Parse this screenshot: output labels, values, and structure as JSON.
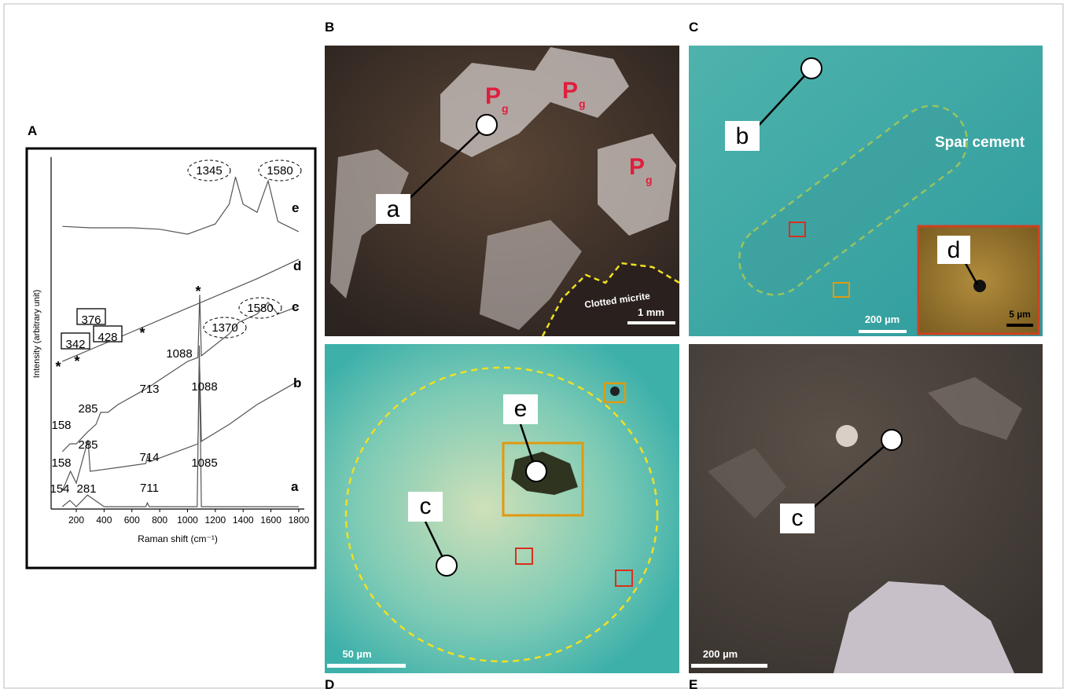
{
  "chart_data": {
    "type": "line",
    "xlabel": "Raman shift (cm⁻¹)",
    "ylabel": "Intensity (arbitrary unit)",
    "xlim": [
      19,
      1840
    ],
    "xticks": [
      200,
      400,
      600,
      800,
      1000,
      1200,
      1400,
      1600,
      1800
    ],
    "ylim": [
      0,
      100
    ],
    "series": [
      {
        "name": "a",
        "color": "#555555",
        "x": [
          100,
          154,
          200,
          281,
          400,
          700,
          711,
          725,
          1070,
          1085,
          1100,
          1800
        ],
        "values": [
          1.1,
          2.9,
          1.1,
          4.4,
          1.1,
          1.1,
          2.2,
          1.1,
          1.1,
          46.7,
          1.1,
          1.1
        ]
      },
      {
        "name": "b",
        "color": "#555555",
        "x": [
          100,
          158,
          200,
          285,
          300,
          500,
          700,
          714,
          725,
          1000,
          1075,
          1088,
          1100,
          1300,
          1500,
          1800
        ],
        "values": [
          5.6,
          11.1,
          7.8,
          20,
          11.1,
          12.2,
          13.3,
          15.6,
          13.8,
          17.8,
          18.9,
          40,
          19.6,
          24.4,
          30,
          36.7
        ]
      },
      {
        "name": "c",
        "color": "#555555",
        "x": [
          100,
          154,
          200,
          280,
          342,
          376,
          428,
          500,
          700,
          1000,
          1075,
          1088,
          1100,
          1300,
          1370,
          1500,
          1580,
          1650,
          1800
        ],
        "values": [
          16.7,
          18.9,
          18.9,
          22.2,
          24.4,
          27.8,
          27.8,
          30,
          34.4,
          42.2,
          43.3,
          61.1,
          43.8,
          50,
          53.3,
          55.6,
          58.9,
          55.6,
          57.8
        ]
      },
      {
        "name": "d",
        "color": "#555555",
        "x": [
          100,
          500,
          1000,
          1500,
          1800
        ],
        "values": [
          42.2,
          48.9,
          57.3,
          65.6,
          71.1
        ]
      },
      {
        "name": "e",
        "color": "#555555",
        "x": [
          100,
          300,
          600,
          800,
          1000,
          1200,
          1300,
          1345,
          1400,
          1500,
          1580,
          1650,
          1800
        ],
        "values": [
          80.4,
          80,
          80,
          79.6,
          78.2,
          81.1,
          86.7,
          94.4,
          86.7,
          84.4,
          93.3,
          81.8,
          78.9
        ]
      }
    ],
    "annotations": [
      {
        "text": "1345",
        "style": "ellipse"
      },
      {
        "text": "1580",
        "style": "ellipse"
      },
      {
        "text": "376",
        "style": "box"
      },
      {
        "text": "342",
        "style": "box"
      },
      {
        "text": "428",
        "style": "box"
      },
      {
        "text": "1370",
        "style": "ellipse"
      },
      {
        "text": "1580",
        "style": "ellipse"
      },
      {
        "text": "1088",
        "style": "plain"
      },
      {
        "text": "*",
        "style": "plain"
      },
      {
        "text": "*",
        "style": "plain"
      },
      {
        "text": "*",
        "style": "plain"
      },
      {
        "text": "*",
        "style": "plain"
      },
      {
        "text": "713",
        "style": "plain"
      },
      {
        "text": "1088",
        "style": "plain"
      },
      {
        "text": "158",
        "style": "plain"
      },
      {
        "text": "285",
        "style": "plain"
      },
      {
        "text": "158",
        "style": "plain"
      },
      {
        "text": "285",
        "style": "plain"
      },
      {
        "text": "714",
        "style": "plain"
      },
      {
        "text": "1085",
        "style": "plain"
      },
      {
        "text": "154",
        "style": "plain"
      },
      {
        "text": "281",
        "style": "plain"
      },
      {
        "text": "711",
        "style": "plain"
      }
    ]
  },
  "panels": {
    "A": {
      "label": "A"
    },
    "B": {
      "label": "B",
      "callout": "a",
      "minerals": [
        {
          "main": "P",
          "sub": "g"
        },
        {
          "main": "P",
          "sub": "g"
        },
        {
          "main": "P",
          "sub": "g"
        }
      ],
      "annotation": "Clotted micrite",
      "scale_bar": "1 mm"
    },
    "C": {
      "label": "C",
      "callout": "b",
      "annotation": "Spar cement",
      "scale_bar": "200 µm",
      "inset_callout": "d",
      "inset_scale_bar": "5 µm"
    },
    "D": {
      "label": "D",
      "callouts": [
        "e",
        "c"
      ],
      "scale_bar": "50 µm"
    },
    "E": {
      "label": "E",
      "callout": "c",
      "scale_bar": "200 µm"
    }
  }
}
